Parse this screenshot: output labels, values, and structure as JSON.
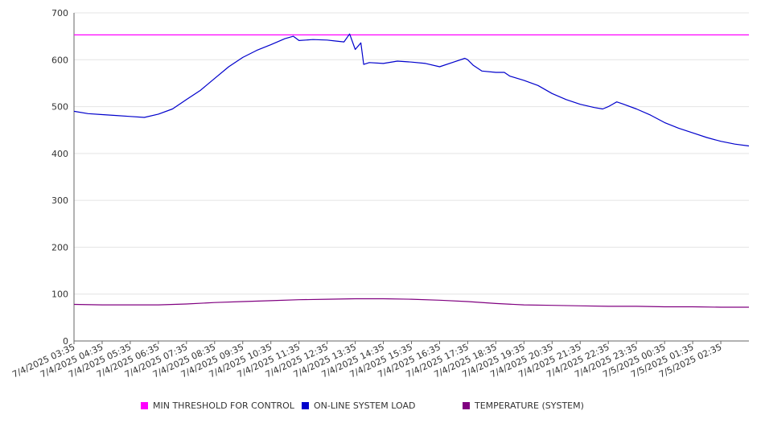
{
  "chart_data": {
    "type": "line",
    "title": "",
    "xlabel": "",
    "ylabel": "",
    "ylim": [
      0,
      700
    ],
    "y_ticks": [
      0,
      100,
      200,
      300,
      400,
      500,
      600,
      700
    ],
    "grid": "horizontal",
    "legend_position": "bottom",
    "categories": [
      "7/4/2025 03:35",
      "7/4/2025 04:35",
      "7/4/2025 05:35",
      "7/4/2025 06:35",
      "7/4/2025 07:35",
      "7/4/2025 08:35",
      "7/4/2025 09:35",
      "7/4/2025 10:35",
      "7/4/2025 11:35",
      "7/4/2025 12:35",
      "7/4/2025 13:35",
      "7/4/2025 14:35",
      "7/4/2025 15:35",
      "7/4/2025 16:35",
      "7/4/2025 17:35",
      "7/4/2025 18:35",
      "7/4/2025 19:35",
      "7/4/2025 20:35",
      "7/4/2025 21:35",
      "7/4/2025 22:35",
      "7/4/2025 23:35",
      "7/5/2025 00:35",
      "7/5/2025 01:35",
      "7/5/2025 02:35"
    ],
    "series": [
      {
        "name": "MIN THRESHOLD FOR CONTROL",
        "color": "#ff00ff",
        "points": [
          [
            0,
            653
          ],
          [
            24,
            653
          ]
        ]
      },
      {
        "name": "ON-LINE SYSTEM LOAD",
        "color": "#0000cc",
        "points": [
          [
            0,
            490
          ],
          [
            0.5,
            485
          ],
          [
            1,
            483
          ],
          [
            1.5,
            481
          ],
          [
            2,
            479
          ],
          [
            2.5,
            477
          ],
          [
            3,
            484
          ],
          [
            3.5,
            495
          ],
          [
            4,
            515
          ],
          [
            4.5,
            535
          ],
          [
            5,
            560
          ],
          [
            5.5,
            585
          ],
          [
            6,
            605
          ],
          [
            6.5,
            620
          ],
          [
            7,
            632
          ],
          [
            7.5,
            645
          ],
          [
            7.8,
            650
          ],
          [
            8,
            641
          ],
          [
            8.5,
            643
          ],
          [
            9,
            642
          ],
          [
            9.3,
            640
          ],
          [
            9.6,
            638
          ],
          [
            9.8,
            655
          ],
          [
            10,
            622
          ],
          [
            10.2,
            636
          ],
          [
            10.3,
            590
          ],
          [
            10.5,
            594
          ],
          [
            11,
            592
          ],
          [
            11.5,
            597
          ],
          [
            12,
            595
          ],
          [
            12.5,
            592
          ],
          [
            13,
            585
          ],
          [
            13.5,
            595
          ],
          [
            13.9,
            603
          ],
          [
            14,
            600
          ],
          [
            14.2,
            588
          ],
          [
            14.5,
            576
          ],
          [
            15,
            573
          ],
          [
            15.3,
            573
          ],
          [
            15.5,
            565
          ],
          [
            16,
            556
          ],
          [
            16.5,
            545
          ],
          [
            17,
            528
          ],
          [
            17.5,
            515
          ],
          [
            18,
            505
          ],
          [
            18.5,
            498
          ],
          [
            18.8,
            495
          ],
          [
            19,
            500
          ],
          [
            19.3,
            510
          ],
          [
            19.5,
            506
          ],
          [
            20,
            495
          ],
          [
            20.5,
            482
          ],
          [
            21,
            466
          ],
          [
            21.5,
            454
          ],
          [
            22,
            444
          ],
          [
            22.5,
            434
          ],
          [
            23,
            426
          ],
          [
            23.5,
            420
          ],
          [
            24,
            416
          ]
        ]
      },
      {
        "name": "TEMPERATURE (SYSTEM)",
        "color": "#800080",
        "points": [
          [
            0,
            78
          ],
          [
            1,
            77
          ],
          [
            2,
            77
          ],
          [
            3,
            77
          ],
          [
            4,
            79
          ],
          [
            5,
            82
          ],
          [
            6,
            84
          ],
          [
            7,
            86
          ],
          [
            8,
            88
          ],
          [
            9,
            89
          ],
          [
            10,
            90
          ],
          [
            11,
            90
          ],
          [
            12,
            89
          ],
          [
            13,
            87
          ],
          [
            14,
            84
          ],
          [
            15,
            80
          ],
          [
            16,
            77
          ],
          [
            17,
            76
          ],
          [
            18,
            75
          ],
          [
            19,
            74
          ],
          [
            20,
            74
          ],
          [
            21,
            73
          ],
          [
            22,
            73
          ],
          [
            23,
            72
          ],
          [
            24,
            72
          ]
        ]
      }
    ]
  }
}
